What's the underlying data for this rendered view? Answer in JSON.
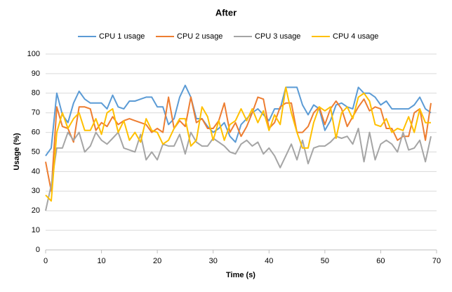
{
  "chart_data": {
    "type": "line",
    "title": "After",
    "x_label": "Time (s)",
    "y_label": "Usage (%)",
    "x": [
      0,
      1,
      2,
      3,
      4,
      5,
      6,
      7,
      8,
      9,
      10,
      11,
      12,
      13,
      14,
      15,
      16,
      17,
      18,
      19,
      20,
      21,
      22,
      23,
      24,
      25,
      26,
      27,
      28,
      29,
      30,
      31,
      32,
      33,
      34,
      35,
      36,
      37,
      38,
      39,
      40,
      41,
      42,
      43,
      44,
      45,
      46,
      47,
      48,
      49,
      50,
      51,
      52,
      53,
      54,
      55,
      56,
      57,
      58,
      59,
      60,
      61,
      62,
      63,
      64,
      65,
      66,
      67,
      68,
      69
    ],
    "series": [
      {
        "name": "CPU 1 usage",
        "color": "#5b9bd5",
        "values": [
          48,
          52,
          80,
          69,
          65,
          75,
          81,
          77,
          75,
          75,
          75,
          72,
          79,
          73,
          72,
          76,
          76,
          77,
          78,
          78,
          73,
          73,
          64,
          67,
          78,
          84,
          78,
          67,
          67,
          63,
          60,
          62,
          65,
          58,
          55,
          64,
          67,
          70,
          72,
          69,
          66,
          72,
          72,
          83,
          83,
          83,
          74,
          69,
          74,
          72,
          61,
          66,
          74,
          75,
          73,
          72,
          83,
          80,
          80,
          78,
          74,
          76,
          72,
          72,
          72,
          72,
          74,
          78,
          72,
          70
        ]
      },
      {
        "name": "CPU 2 usage",
        "color": "#ed7d31",
        "values": [
          45,
          30,
          73,
          63,
          62,
          55,
          73,
          73,
          72,
          61,
          65,
          63,
          68,
          64,
          66,
          67,
          66,
          65,
          64,
          60,
          62,
          60,
          78,
          62,
          66,
          63,
          78,
          65,
          67,
          62,
          62,
          66,
          75,
          60,
          65,
          58,
          63,
          70,
          78,
          77,
          62,
          65,
          73,
          75,
          75,
          60,
          60,
          63,
          70,
          73,
          64,
          72,
          76,
          72,
          63,
          68,
          73,
          77,
          71,
          73,
          72,
          62,
          62,
          56,
          58,
          58,
          70,
          72,
          56,
          75
        ]
      },
      {
        "name": "CPU 3 usage",
        "color": "#a5a5a5",
        "values": [
          20,
          33,
          52,
          52,
          60,
          56,
          60,
          50,
          53,
          60,
          56,
          54,
          57,
          60,
          52,
          51,
          50,
          59,
          46,
          50,
          46,
          54,
          53,
          53,
          59,
          49,
          60,
          55,
          53,
          53,
          57,
          55,
          53,
          50,
          49,
          54,
          56,
          53,
          55,
          49,
          52,
          48,
          42,
          48,
          54,
          46,
          56,
          44,
          52,
          53,
          53,
          55,
          58,
          57,
          58,
          54,
          62,
          45,
          60,
          46,
          54,
          56,
          54,
          50,
          60,
          51,
          52,
          56,
          45,
          58
        ]
      },
      {
        "name": "CPU 4 usage",
        "color": "#ffc000",
        "values": [
          28,
          25,
          60,
          70,
          62,
          67,
          70,
          61,
          61,
          67,
          59,
          70,
          72,
          60,
          66,
          56,
          60,
          55,
          67,
          61,
          60,
          54,
          56,
          62,
          67,
          67,
          53,
          56,
          73,
          68,
          56,
          66,
          56,
          64,
          66,
          72,
          66,
          72,
          65,
          71,
          61,
          69,
          64,
          83,
          70,
          60,
          52,
          52,
          65,
          73,
          71,
          73,
          57,
          70,
          73,
          67,
          78,
          80,
          76,
          64,
          63,
          67,
          60,
          62,
          61,
          68,
          60,
          72,
          65,
          65
        ]
      }
    ],
    "xlim": [
      0,
      70
    ],
    "xticks": [
      0,
      10,
      20,
      30,
      40,
      50,
      60,
      70
    ],
    "ylim": [
      0,
      100
    ],
    "yticks": [
      0,
      10,
      20,
      30,
      40,
      50,
      60,
      70,
      80,
      90,
      100
    ],
    "grid": true,
    "legend": "top"
  }
}
